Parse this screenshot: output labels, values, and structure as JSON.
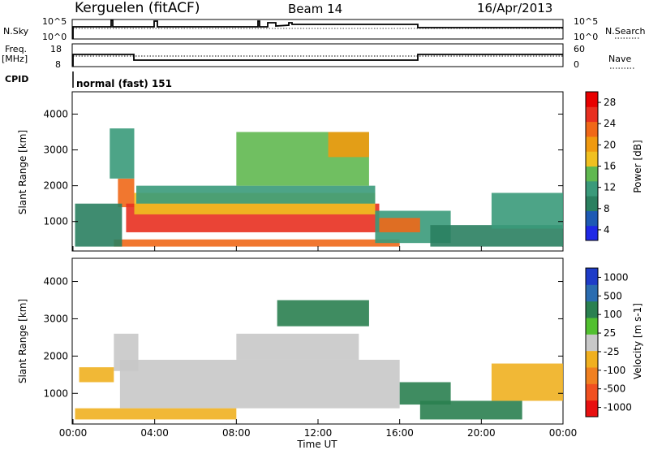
{
  "header": {
    "site": "Kerguelen (fitACF)",
    "beam": "Beam 14",
    "date": "16/Apr/2013"
  },
  "panels": {
    "nsky": {
      "label": "N.Sky",
      "tick_top": "10^5",
      "tick_bottom": "10^0",
      "right_label": "N.Search"
    },
    "freq": {
      "label_line1": "Freq.",
      "label_line2": "[MHz]",
      "tick_top": "18",
      "tick_bottom": "8",
      "right_tick_top": "60",
      "right_tick_bottom": "0",
      "right_label": "Nave"
    },
    "cpid": {
      "label": "CPID",
      "value": "normal (fast) 151"
    }
  },
  "colors": {
    "power": [
      "#1f28e6",
      "#1e5ab4",
      "#2a8060",
      "#3a9a7a",
      "#60b850",
      "#f0c020",
      "#f09a10",
      "#f06818",
      "#e83020",
      "#e80000"
    ],
    "velocity_pos": [
      "#1e3cc8",
      "#2a6cb0",
      "#2a8050",
      "#52c030"
    ],
    "velocity_gray": "#c8c8c8",
    "velocity_neg": [
      "#f0b020",
      "#f08020",
      "#f05020",
      "#e81010"
    ]
  },
  "chart_data": [
    {
      "type": "heatmap",
      "name": "power",
      "ylabel": "Slant Range [km]",
      "y_ticks": [
        1000,
        2000,
        3000,
        4000
      ],
      "ylim": [
        200,
        4600
      ],
      "xlim_hours": [
        0,
        24
      ],
      "colorbar": {
        "label": "Power [dB]",
        "ticks": [
          "28",
          "24",
          "20",
          "16",
          "12",
          "8",
          "4"
        ],
        "range": [
          0,
          30
        ]
      },
      "regions": [
        {
          "t": [
            2.0,
            16.0
          ],
          "r": [
            300,
            500
          ],
          "v": 22
        },
        {
          "t": [
            2.2,
            3.0
          ],
          "r": [
            1400,
            2200
          ],
          "v": 22
        },
        {
          "t": [
            2.6,
            15.0
          ],
          "r": [
            700,
            1500
          ],
          "v": 24
        },
        {
          "t": [
            3.0,
            14.8
          ],
          "r": [
            1200,
            1800
          ],
          "v": 15
        },
        {
          "t": [
            3.1,
            14.8
          ],
          "r": [
            1500,
            2000
          ],
          "v": 11
        },
        {
          "t": [
            0.1,
            2.4
          ],
          "r": [
            300,
            1500
          ],
          "v": 6
        },
        {
          "t": [
            1.8,
            3.0
          ],
          "r": [
            2200,
            3600
          ],
          "v": 10
        },
        {
          "t": [
            8.0,
            14.5
          ],
          "r": [
            2000,
            3500
          ],
          "v": 12
        },
        {
          "t": [
            12.5,
            14.5
          ],
          "r": [
            2800,
            3500
          ],
          "v": 18
        },
        {
          "t": [
            14.8,
            18.5
          ],
          "r": [
            400,
            1300
          ],
          "v": 10
        },
        {
          "t": [
            15.0,
            17.0
          ],
          "r": [
            700,
            1100
          ],
          "v": 22
        },
        {
          "t": [
            17.5,
            24.0
          ],
          "r": [
            300,
            900
          ],
          "v": 6
        },
        {
          "t": [
            20.5,
            24.0
          ],
          "r": [
            800,
            1800
          ],
          "v": 11
        }
      ]
    },
    {
      "type": "heatmap",
      "name": "velocity",
      "xlabel": "Time UT",
      "ylabel": "Slant Range [km]",
      "y_ticks": [
        1000,
        2000,
        3000,
        4000
      ],
      "ylim": [
        200,
        4600
      ],
      "xlim_hours": [
        0,
        24
      ],
      "x_ticks": [
        "00:00",
        "04:00",
        "08:00",
        "12:00",
        "16:00",
        "20:00",
        "00:00"
      ],
      "colorbar": {
        "label": "Velocity [m s-1]",
        "ticks": [
          "1000",
          "500",
          "100",
          "25",
          "-25",
          "-100",
          "-500",
          "-1000"
        ],
        "range": [
          -1200,
          1200
        ]
      },
      "regions": [
        {
          "t": [
            2.3,
            16.0
          ],
          "r": [
            600,
            1900
          ],
          "v": 0
        },
        {
          "t": [
            2.0,
            3.2
          ],
          "r": [
            1600,
            2600
          ],
          "v": 0
        },
        {
          "t": [
            8.0,
            14.0
          ],
          "r": [
            1900,
            2600
          ],
          "v": 0
        },
        {
          "t": [
            16.0,
            18.5
          ],
          "r": [
            700,
            1300
          ],
          "v": 120
        },
        {
          "t": [
            17.0,
            22.0
          ],
          "r": [
            300,
            800
          ],
          "v": 110
        },
        {
          "t": [
            0.3,
            2.0
          ],
          "r": [
            1300,
            1700
          ],
          "v": -80
        },
        {
          "t": [
            10.0,
            14.5
          ],
          "r": [
            2800,
            3500
          ],
          "v": 200
        },
        {
          "t": [
            20.5,
            24.0
          ],
          "r": [
            800,
            1800
          ],
          "v": -60
        },
        {
          "t": [
            0.1,
            8.0
          ],
          "r": [
            300,
            600
          ],
          "v": -60
        }
      ]
    }
  ]
}
